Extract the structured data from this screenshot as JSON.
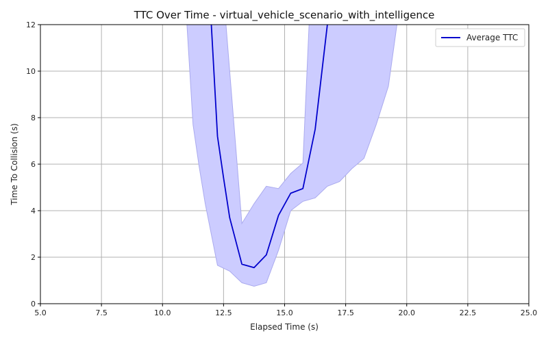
{
  "chart_data": {
    "type": "line",
    "title": "TTC Over Time - virtual_vehicle_scenario_with_intelligence",
    "xlabel": "Elapsed Time (s)",
    "ylabel": "Time To Collision (s)",
    "xlim": [
      5.0,
      25.0
    ],
    "ylim": [
      0,
      12
    ],
    "xticks": [
      "5.0",
      "7.5",
      "10.0",
      "12.5",
      "15.0",
      "17.5",
      "20.0",
      "22.5",
      "25.0"
    ],
    "yticks": [
      "0",
      "2",
      "4",
      "6",
      "8",
      "10",
      "12"
    ],
    "grid": true,
    "legend_position": "top-right",
    "series": [
      {
        "name": "Average TTC",
        "color": "#0000cc",
        "x": [
          12.0,
          12.25,
          12.5,
          12.75,
          13.25,
          13.75,
          14.25,
          14.75,
          15.25,
          15.75,
          16.25,
          16.75
        ],
        "y": [
          12.0,
          7.2,
          5.4,
          3.7,
          1.7,
          1.55,
          2.1,
          3.8,
          4.75,
          4.95,
          7.5,
          12.0
        ]
      }
    ],
    "band": {
      "color": "#ccccff",
      "edge_color": "#aaaaee",
      "upper": {
        "x": [
          11.0,
          12.6,
          13.25,
          13.75,
          14.25,
          14.75,
          15.25,
          15.75,
          16.0,
          19.6
        ],
        "y": [
          12.0,
          12.0,
          3.45,
          4.3,
          5.05,
          4.95,
          5.6,
          6.05,
          12.0,
          12.0
        ]
      },
      "lower": {
        "x": [
          11.0,
          11.25,
          11.5,
          11.75,
          12.25,
          12.75,
          13.25,
          13.75,
          14.25,
          14.75,
          15.25,
          15.75,
          16.25,
          16.75,
          17.25,
          17.75,
          18.25,
          18.75,
          19.25,
          19.6
        ],
        "y": [
          12.0,
          7.7,
          5.9,
          4.3,
          1.65,
          1.4,
          0.9,
          0.75,
          0.9,
          2.3,
          4.0,
          4.4,
          4.55,
          5.05,
          5.25,
          5.8,
          6.25,
          7.7,
          9.35,
          12.0
        ]
      }
    }
  }
}
